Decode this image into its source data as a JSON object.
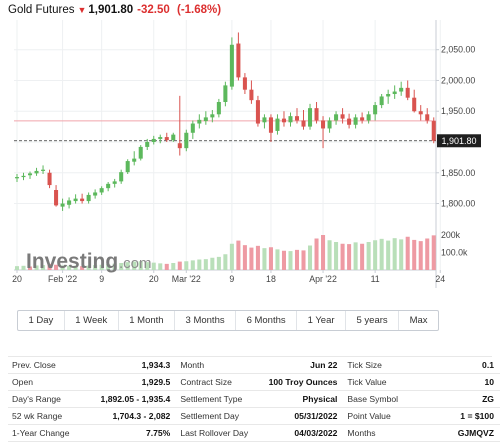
{
  "header": {
    "title": "Gold Futures",
    "price": "1,901.80",
    "change": "-32.50",
    "change_pct": "(-1.68%)",
    "arrow_icon": "down-arrow-icon",
    "negative_color": "#dc2f2f"
  },
  "chart_data": {
    "type": "candlestick",
    "title": "Gold Futures",
    "y_ticks": [
      "2,050.00",
      "2,000.00",
      "1,950.00",
      "1,900.00",
      "1,850.00",
      "1,800.00"
    ],
    "y_tick_values": [
      2050,
      2000,
      1950,
      1900,
      1850,
      1800
    ],
    "price_ylim": [
      1770,
      2095
    ],
    "last_price_label": "1,901.80",
    "reference_line_value": 1934.3,
    "volume_ticks": [
      "200k",
      "100.0k"
    ],
    "volume_tick_values": [
      200,
      100
    ],
    "volume_ylim": [
      0,
      240
    ],
    "x_tick_labels": [
      "20",
      "Feb '22",
      "9",
      "20",
      "Mar '22",
      "9",
      "18",
      "Apr '22",
      "11",
      "24"
    ],
    "x_tick_indices": [
      0,
      7,
      13,
      21,
      26,
      33,
      39,
      47,
      55,
      65
    ],
    "colors": {
      "up": "#5cb85c",
      "down": "#d9534f",
      "volume_up": "#b9dfb9",
      "volume_down": "#ee9aa3"
    },
    "candles": [
      {
        "o": 1841,
        "h": 1848,
        "l": 1835,
        "c": 1843
      },
      {
        "o": 1843,
        "h": 1850,
        "l": 1838,
        "c": 1845
      },
      {
        "o": 1846,
        "h": 1852,
        "l": 1840,
        "c": 1849
      },
      {
        "o": 1849,
        "h": 1858,
        "l": 1845,
        "c": 1853
      },
      {
        "o": 1853,
        "h": 1862,
        "l": 1848,
        "c": 1855
      },
      {
        "o": 1850,
        "h": 1855,
        "l": 1825,
        "c": 1830
      },
      {
        "o": 1822,
        "h": 1830,
        "l": 1795,
        "c": 1797
      },
      {
        "o": 1795,
        "h": 1808,
        "l": 1788,
        "c": 1800
      },
      {
        "o": 1798,
        "h": 1810,
        "l": 1792,
        "c": 1805
      },
      {
        "o": 1804,
        "h": 1815,
        "l": 1800,
        "c": 1808
      },
      {
        "o": 1808,
        "h": 1816,
        "l": 1800,
        "c": 1804
      },
      {
        "o": 1804,
        "h": 1818,
        "l": 1800,
        "c": 1814
      },
      {
        "o": 1813,
        "h": 1823,
        "l": 1808,
        "c": 1818
      },
      {
        "o": 1818,
        "h": 1828,
        "l": 1814,
        "c": 1825
      },
      {
        "o": 1825,
        "h": 1835,
        "l": 1820,
        "c": 1832
      },
      {
        "o": 1832,
        "h": 1840,
        "l": 1826,
        "c": 1836
      },
      {
        "o": 1836,
        "h": 1855,
        "l": 1832,
        "c": 1851
      },
      {
        "o": 1851,
        "h": 1872,
        "l": 1848,
        "c": 1869
      },
      {
        "o": 1868,
        "h": 1885,
        "l": 1862,
        "c": 1873
      },
      {
        "o": 1873,
        "h": 1895,
        "l": 1870,
        "c": 1892
      },
      {
        "o": 1892,
        "h": 1905,
        "l": 1887,
        "c": 1900
      },
      {
        "o": 1900,
        "h": 1910,
        "l": 1896,
        "c": 1905
      },
      {
        "o": 1905,
        "h": 1912,
        "l": 1898,
        "c": 1908
      },
      {
        "o": 1908,
        "h": 1915,
        "l": 1900,
        "c": 1903
      },
      {
        "o": 1903,
        "h": 1915,
        "l": 1900,
        "c": 1912
      },
      {
        "o": 1898,
        "h": 1975,
        "l": 1878,
        "c": 1890
      },
      {
        "o": 1890,
        "h": 1920,
        "l": 1885,
        "c": 1915
      },
      {
        "o": 1915,
        "h": 1935,
        "l": 1905,
        "c": 1930
      },
      {
        "o": 1930,
        "h": 1945,
        "l": 1922,
        "c": 1936
      },
      {
        "o": 1934,
        "h": 1950,
        "l": 1928,
        "c": 1940
      },
      {
        "o": 1940,
        "h": 1952,
        "l": 1932,
        "c": 1945
      },
      {
        "o": 1945,
        "h": 1970,
        "l": 1940,
        "c": 1965
      },
      {
        "o": 1965,
        "h": 1998,
        "l": 1958,
        "c": 1992
      },
      {
        "o": 1990,
        "h": 2070,
        "l": 1985,
        "c": 2058
      },
      {
        "o": 2060,
        "h": 2078,
        "l": 2000,
        "c": 2005
      },
      {
        "o": 2005,
        "h": 2012,
        "l": 1978,
        "c": 1985
      },
      {
        "o": 1985,
        "h": 2000,
        "l": 1962,
        "c": 1968
      },
      {
        "o": 1968,
        "h": 1975,
        "l": 1925,
        "c": 1930
      },
      {
        "o": 1932,
        "h": 1945,
        "l": 1922,
        "c": 1940
      },
      {
        "o": 1940,
        "h": 1945,
        "l": 1900,
        "c": 1915
      },
      {
        "o": 1918,
        "h": 1945,
        "l": 1912,
        "c": 1938
      },
      {
        "o": 1938,
        "h": 1950,
        "l": 1925,
        "c": 1932
      },
      {
        "o": 1932,
        "h": 1948,
        "l": 1925,
        "c": 1942
      },
      {
        "o": 1942,
        "h": 1955,
        "l": 1930,
        "c": 1935
      },
      {
        "o": 1935,
        "h": 1952,
        "l": 1920,
        "c": 1925
      },
      {
        "o": 1925,
        "h": 1962,
        "l": 1920,
        "c": 1955
      },
      {
        "o": 1955,
        "h": 1965,
        "l": 1930,
        "c": 1935
      },
      {
        "o": 1935,
        "h": 1942,
        "l": 1890,
        "c": 1922
      },
      {
        "o": 1922,
        "h": 1940,
        "l": 1915,
        "c": 1935
      },
      {
        "o": 1935,
        "h": 1950,
        "l": 1928,
        "c": 1945
      },
      {
        "o": 1945,
        "h": 1955,
        "l": 1930,
        "c": 1938
      },
      {
        "o": 1938,
        "h": 1946,
        "l": 1922,
        "c": 1928
      },
      {
        "o": 1928,
        "h": 1945,
        "l": 1922,
        "c": 1940
      },
      {
        "o": 1940,
        "h": 1948,
        "l": 1930,
        "c": 1935
      },
      {
        "o": 1935,
        "h": 1950,
        "l": 1930,
        "c": 1945
      },
      {
        "o": 1945,
        "h": 1965,
        "l": 1935,
        "c": 1960
      },
      {
        "o": 1960,
        "h": 1978,
        "l": 1955,
        "c": 1974
      },
      {
        "o": 1974,
        "h": 1985,
        "l": 1962,
        "c": 1978
      },
      {
        "o": 1978,
        "h": 1992,
        "l": 1970,
        "c": 1982
      },
      {
        "o": 1982,
        "h": 1998,
        "l": 1975,
        "c": 1988
      },
      {
        "o": 1988,
        "h": 2000,
        "l": 1968,
        "c": 1972
      },
      {
        "o": 1972,
        "h": 1985,
        "l": 1948,
        "c": 1950
      },
      {
        "o": 1950,
        "h": 1960,
        "l": 1935,
        "c": 1945
      },
      {
        "o": 1945,
        "h": 1955,
        "l": 1930,
        "c": 1935
      },
      {
        "o": 1934,
        "h": 1940,
        "l": 1898,
        "c": 1902
      }
    ],
    "volume": [
      {
        "v": 22,
        "up": true
      },
      {
        "v": 24,
        "up": true
      },
      {
        "v": 20,
        "up": false
      },
      {
        "v": 26,
        "up": true
      },
      {
        "v": 28,
        "up": true
      },
      {
        "v": 35,
        "up": false
      },
      {
        "v": 30,
        "up": false
      },
      {
        "v": 26,
        "up": true
      },
      {
        "v": 24,
        "up": true
      },
      {
        "v": 25,
        "up": true
      },
      {
        "v": 22,
        "up": false
      },
      {
        "v": 25,
        "up": true
      },
      {
        "v": 28,
        "up": true
      },
      {
        "v": 30,
        "up": true
      },
      {
        "v": 33,
        "up": true
      },
      {
        "v": 36,
        "up": true
      },
      {
        "v": 40,
        "up": true
      },
      {
        "v": 45,
        "up": true
      },
      {
        "v": 48,
        "up": true
      },
      {
        "v": 50,
        "up": true
      },
      {
        "v": 45,
        "up": true
      },
      {
        "v": 42,
        "up": true
      },
      {
        "v": 38,
        "up": true
      },
      {
        "v": 35,
        "up": false
      },
      {
        "v": 40,
        "up": true
      },
      {
        "v": 48,
        "up": false
      },
      {
        "v": 50,
        "up": true
      },
      {
        "v": 55,
        "up": true
      },
      {
        "v": 60,
        "up": true
      },
      {
        "v": 62,
        "up": true
      },
      {
        "v": 70,
        "up": true
      },
      {
        "v": 75,
        "up": true
      },
      {
        "v": 90,
        "up": true
      },
      {
        "v": 150,
        "up": true
      },
      {
        "v": 168,
        "up": false
      },
      {
        "v": 142,
        "up": false
      },
      {
        "v": 128,
        "up": false
      },
      {
        "v": 138,
        "up": false
      },
      {
        "v": 125,
        "up": true
      },
      {
        "v": 130,
        "up": false
      },
      {
        "v": 118,
        "up": true
      },
      {
        "v": 110,
        "up": false
      },
      {
        "v": 108,
        "up": true
      },
      {
        "v": 115,
        "up": false
      },
      {
        "v": 112,
        "up": false
      },
      {
        "v": 140,
        "up": true
      },
      {
        "v": 180,
        "up": false
      },
      {
        "v": 200,
        "up": false
      },
      {
        "v": 170,
        "up": true
      },
      {
        "v": 160,
        "up": true
      },
      {
        "v": 150,
        "up": false
      },
      {
        "v": 148,
        "up": false
      },
      {
        "v": 158,
        "up": true
      },
      {
        "v": 150,
        "up": false
      },
      {
        "v": 160,
        "up": true
      },
      {
        "v": 170,
        "up": true
      },
      {
        "v": 178,
        "up": true
      },
      {
        "v": 168,
        "up": true
      },
      {
        "v": 182,
        "up": true
      },
      {
        "v": 175,
        "up": true
      },
      {
        "v": 190,
        "up": false
      },
      {
        "v": 172,
        "up": false
      },
      {
        "v": 165,
        "up": false
      },
      {
        "v": 180,
        "up": false
      },
      {
        "v": 198,
        "up": false
      }
    ]
  },
  "watermark": {
    "brand": "Investing",
    "suffix": ".com"
  },
  "timeframes": [
    "1 Day",
    "1 Week",
    "1 Month",
    "3 Months",
    "6 Months",
    "1 Year",
    "5 years",
    "Max"
  ],
  "stats": {
    "rows": [
      [
        [
          "Prev. Close",
          "1,934.3"
        ],
        [
          "Month",
          "Jun 22"
        ],
        [
          "Tick Size",
          "0.1"
        ]
      ],
      [
        [
          "Open",
          "1,929.5"
        ],
        [
          "Contract Size",
          "100 Troy Ounces"
        ],
        [
          "Tick Value",
          "10"
        ]
      ],
      [
        [
          "Day's Range",
          "1,892.05 - 1,935.4"
        ],
        [
          "Settlement Type",
          "Physical"
        ],
        [
          "Base Symbol",
          "ZG"
        ]
      ],
      [
        [
          "52 wk Range",
          "1,704.3 - 2,082"
        ],
        [
          "Settlement Day",
          "05/31/2022"
        ],
        [
          "Point Value",
          "1 = $100"
        ]
      ],
      [
        [
          "1-Year Change",
          "7.75%"
        ],
        [
          "Last Rollover Day",
          "04/03/2022"
        ],
        [
          "Months",
          "GJMQVZ"
        ]
      ]
    ]
  }
}
